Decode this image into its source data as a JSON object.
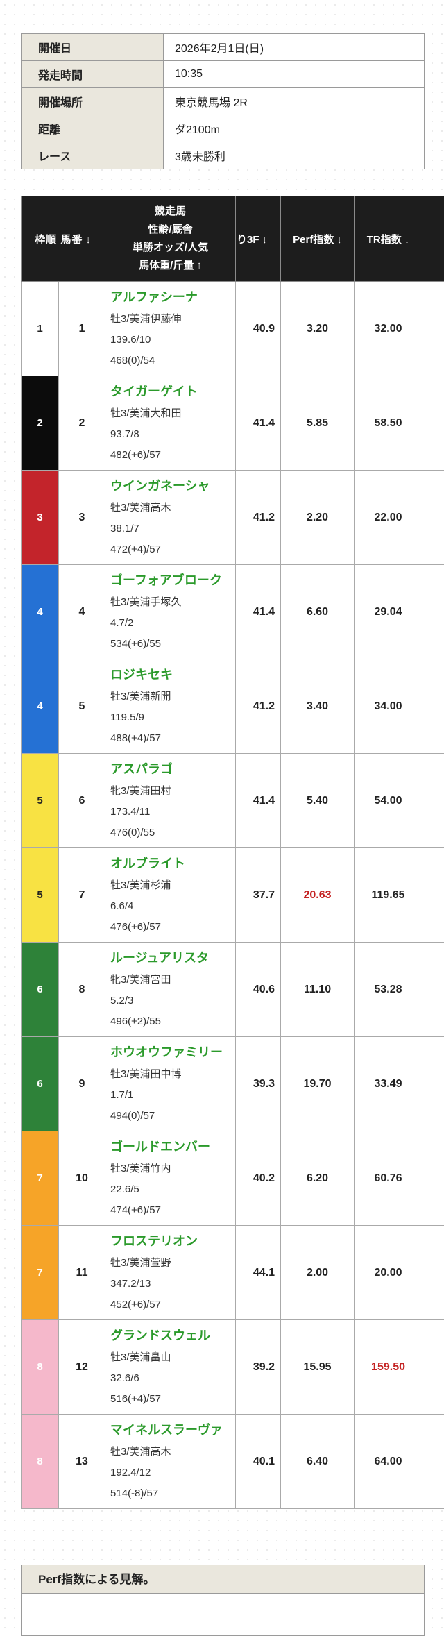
{
  "race_info": {
    "rows": [
      {
        "label": "開催日",
        "value": "2026年2月1日(日)"
      },
      {
        "label": "発走時間",
        "value": "10:35"
      },
      {
        "label": "開催場所",
        "value": "東京競馬場 2R"
      },
      {
        "label": "距離",
        "value": "ダ2100m"
      },
      {
        "label": "レース",
        "value": "3歳未勝利"
      }
    ]
  },
  "table": {
    "headers": {
      "waku_uma": "枠順 馬番",
      "waku_uma_arrow": "↓",
      "horse_line1": "競走馬",
      "horse_line2": "性齢/厩舎",
      "horse_line3": "単勝オッズ/人気",
      "horse_line4": "馬体重/斤量",
      "horse_line4_arrow": "↑",
      "agari3f": "り3F",
      "agari3f_arrow": "↓",
      "perf": "Perf指数",
      "perf_arrow": "↓",
      "tr": "TR指数",
      "tr_arrow": "↓"
    },
    "rows": [
      {
        "frame": "1",
        "frame_color": "#ffffff",
        "frame_text": "#222222",
        "number": "1",
        "name": "アルファシーナ",
        "sex_stable": "牡3/美浦伊藤伸",
        "odds_pop": "139.6/10",
        "weight_load": "468(0)/54",
        "agari_3f": "40.9",
        "perf": "3.20",
        "perf_red": false,
        "tr": "32.00",
        "tr_red": false
      },
      {
        "frame": "2",
        "frame_color": "#0c0c0c",
        "frame_text": "#ffffff",
        "number": "2",
        "name": "タイガーゲイト",
        "sex_stable": "牡3/美浦大和田",
        "odds_pop": "93.7/8",
        "weight_load": "482(+6)/57",
        "agari_3f": "41.4",
        "perf": "5.85",
        "perf_red": false,
        "tr": "58.50",
        "tr_red": false
      },
      {
        "frame": "3",
        "frame_color": "#c3242b",
        "frame_text": "#ffffff",
        "number": "3",
        "name": "ウインガネーシャ",
        "sex_stable": "牡3/美浦高木",
        "odds_pop": "38.1/7",
        "weight_load": "472(+4)/57",
        "agari_3f": "41.2",
        "perf": "2.20",
        "perf_red": false,
        "tr": "22.00",
        "tr_red": false
      },
      {
        "frame": "4",
        "frame_color": "#2571d4",
        "frame_text": "#ffffff",
        "number": "4",
        "name": "ゴーフォアブローク",
        "sex_stable": "牡3/美浦手塚久",
        "odds_pop": "4.7/2",
        "weight_load": "534(+6)/55",
        "agari_3f": "41.4",
        "perf": "6.60",
        "perf_red": false,
        "tr": "29.04",
        "tr_red": false
      },
      {
        "frame": "4",
        "frame_color": "#2571d4",
        "frame_text": "#ffffff",
        "number": "5",
        "name": "ロジキセキ",
        "sex_stable": "牡3/美浦新開",
        "odds_pop": "119.5/9",
        "weight_load": "488(+4)/57",
        "agari_3f": "41.2",
        "perf": "3.40",
        "perf_red": false,
        "tr": "34.00",
        "tr_red": false
      },
      {
        "frame": "5",
        "frame_color": "#f8e243",
        "frame_text": "#222222",
        "number": "6",
        "name": "アスパラゴ",
        "sex_stable": "牝3/美浦田村",
        "odds_pop": "173.4/11",
        "weight_load": "476(0)/55",
        "agari_3f": "41.4",
        "perf": "5.40",
        "perf_red": false,
        "tr": "54.00",
        "tr_red": false
      },
      {
        "frame": "5",
        "frame_color": "#f8e243",
        "frame_text": "#222222",
        "number": "7",
        "name": "オルブライト",
        "sex_stable": "牡3/美浦杉浦",
        "odds_pop": "6.6/4",
        "weight_load": "476(+6)/57",
        "agari_3f": "37.7",
        "perf": "20.63",
        "perf_red": true,
        "tr": "119.65",
        "tr_red": false
      },
      {
        "frame": "6",
        "frame_color": "#2e8239",
        "frame_text": "#ffffff",
        "number": "8",
        "name": "ルージュアリスタ",
        "sex_stable": "牝3/美浦宮田",
        "odds_pop": "5.2/3",
        "weight_load": "496(+2)/55",
        "agari_3f": "40.6",
        "perf": "11.10",
        "perf_red": false,
        "tr": "53.28",
        "tr_red": false
      },
      {
        "frame": "6",
        "frame_color": "#2e8239",
        "frame_text": "#ffffff",
        "number": "9",
        "name": "ホウオウファミリー",
        "sex_stable": "牡3/美浦田中博",
        "odds_pop": "1.7/1",
        "weight_load": "494(0)/57",
        "agari_3f": "39.3",
        "perf": "19.70",
        "perf_red": false,
        "tr": "33.49",
        "tr_red": false
      },
      {
        "frame": "7",
        "frame_color": "#f6a428",
        "frame_text": "#ffffff",
        "number": "10",
        "name": "ゴールドエンバー",
        "sex_stable": "牡3/美浦竹内",
        "odds_pop": "22.6/5",
        "weight_load": "474(+6)/57",
        "agari_3f": "40.2",
        "perf": "6.20",
        "perf_red": false,
        "tr": "60.76",
        "tr_red": false
      },
      {
        "frame": "7",
        "frame_color": "#f6a428",
        "frame_text": "#ffffff",
        "number": "11",
        "name": "フロステリオン",
        "sex_stable": "牡3/美浦萱野",
        "odds_pop": "347.2/13",
        "weight_load": "452(+6)/57",
        "agari_3f": "44.1",
        "perf": "2.00",
        "perf_red": false,
        "tr": "20.00",
        "tr_red": false
      },
      {
        "frame": "8",
        "frame_color": "#f5b8cb",
        "frame_text": "#ffffff",
        "number": "12",
        "name": "グランドスウェル",
        "sex_stable": "牡3/美浦畠山",
        "odds_pop": "32.6/6",
        "weight_load": "516(+4)/57",
        "agari_3f": "39.2",
        "perf": "15.95",
        "perf_red": false,
        "tr": "159.50",
        "tr_red": true
      },
      {
        "frame": "8",
        "frame_color": "#f5b8cb",
        "frame_text": "#ffffff",
        "number": "13",
        "name": "マイネルスラーヴァ",
        "sex_stable": "牡3/美浦高木",
        "odds_pop": "192.4/12",
        "weight_load": "514(-8)/57",
        "agari_3f": "40.1",
        "perf": "6.40",
        "perf_red": false,
        "tr": "64.00",
        "tr_red": false
      }
    ]
  },
  "footer": {
    "title": "Perf指数による見解。"
  },
  "colors": {
    "accent_green": "#2b9a2b",
    "alert_red": "#c42121",
    "header_bg": "#1d1d1d",
    "label_bg": "#eae7dd",
    "horse_cell_bg": "#f2f0e2"
  }
}
